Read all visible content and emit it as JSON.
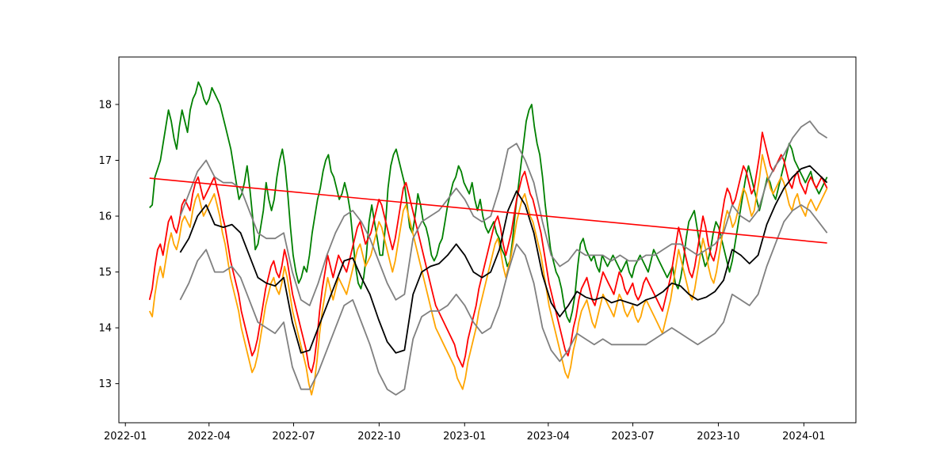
{
  "chart_data": {
    "type": "line",
    "title": "",
    "xlabel": "",
    "ylabel": "",
    "x_range": [
      "2022-01-27",
      "2024-01-26"
    ],
    "xlim": [
      "2021-12-25",
      "2024-02-26"
    ],
    "ylim": [
      12.3,
      18.85
    ],
    "grid": false,
    "legend": "none",
    "x_ticks": [
      "2022-01",
      "2022-04",
      "2022-07",
      "2022-10",
      "2023-01",
      "2023-04",
      "2023-07",
      "2023-10",
      "2024-01"
    ],
    "y_ticks": [
      13,
      14,
      15,
      16,
      17,
      18
    ],
    "series": [
      {
        "color": "#008000",
        "style": "daily",
        "values": [
          16.15,
          16.2,
          16.7,
          16.85,
          17.0,
          17.3,
          17.6,
          17.9,
          17.7,
          17.4,
          17.2,
          17.6,
          17.9,
          17.7,
          17.5,
          17.9,
          18.1,
          18.2,
          18.4,
          18.3,
          18.1,
          18.0,
          18.1,
          18.3,
          18.2,
          18.1,
          18.0,
          17.8,
          17.6,
          17.4,
          17.2,
          16.9,
          16.6,
          16.3,
          16.4,
          16.6,
          16.9,
          16.5,
          16.0,
          15.4,
          15.5,
          15.8,
          16.1,
          16.6,
          16.3,
          16.1,
          16.3,
          16.7,
          17.0,
          17.2,
          16.9,
          16.4,
          15.8,
          15.3,
          15.0,
          14.8,
          14.9,
          15.1,
          15.0,
          15.3,
          15.7,
          16.0,
          16.3,
          16.5,
          16.8,
          17.0,
          17.1,
          16.8,
          16.7,
          16.5,
          16.3,
          16.4,
          16.6,
          16.4,
          16.1,
          15.6,
          15.1,
          14.8,
          14.7,
          14.9,
          15.3,
          15.9,
          16.2,
          15.9,
          15.6,
          15.3,
          15.3,
          15.8,
          16.5,
          16.9,
          17.1,
          17.2,
          17.0,
          16.8,
          16.6,
          16.2,
          15.8,
          15.7,
          16.0,
          16.4,
          16.2,
          15.9,
          15.8,
          15.6,
          15.3,
          15.2,
          15.3,
          15.5,
          15.6,
          15.9,
          16.2,
          16.4,
          16.6,
          16.7,
          16.9,
          16.8,
          16.6,
          16.5,
          16.4,
          16.6,
          16.3,
          16.1,
          16.3,
          16.0,
          15.8,
          15.7,
          15.8,
          15.9,
          15.7,
          15.6,
          15.4,
          15.3,
          15.1,
          15.2,
          15.6,
          16.1,
          16.5,
          16.9,
          17.3,
          17.7,
          17.9,
          18.0,
          17.6,
          17.3,
          17.1,
          16.7,
          16.2,
          15.8,
          15.4,
          15.2,
          15.0,
          14.9,
          14.7,
          14.4,
          14.2,
          14.1,
          14.3,
          14.6,
          15.1,
          15.5,
          15.6,
          15.4,
          15.3,
          15.2,
          15.3,
          15.1,
          15.0,
          15.3,
          15.2,
          15.1,
          15.2,
          15.3,
          15.2,
          15.1,
          15.0,
          15.1,
          15.2,
          15.0,
          14.9,
          15.1,
          15.2,
          15.3,
          15.2,
          15.1,
          15.0,
          15.2,
          15.4,
          15.3,
          15.2,
          15.1,
          15.0,
          14.9,
          15.0,
          15.1,
          14.8,
          14.7,
          14.9,
          15.2,
          15.6,
          15.9,
          16.0,
          16.1,
          15.8,
          15.5,
          15.3,
          15.1,
          15.2,
          15.4,
          15.7,
          15.9,
          15.8,
          15.6,
          15.4,
          15.2,
          15.0,
          15.2,
          15.5,
          15.8,
          16.1,
          16.4,
          16.7,
          16.9,
          16.7,
          16.5,
          16.3,
          16.1,
          16.3,
          16.5,
          16.7,
          16.6,
          16.4,
          16.3,
          16.5,
          16.7,
          16.9,
          17.1,
          17.3,
          17.2,
          17.0,
          16.9,
          16.8,
          16.7,
          16.6,
          16.7,
          16.8,
          16.6,
          16.5,
          16.4,
          16.5,
          16.6,
          16.7
        ]
      },
      {
        "color": "#ff0000",
        "style": "daily",
        "values": [
          14.5,
          14.7,
          15.1,
          15.4,
          15.5,
          15.3,
          15.6,
          15.9,
          16.0,
          15.8,
          15.7,
          15.9,
          16.2,
          16.3,
          16.2,
          16.1,
          16.4,
          16.6,
          16.7,
          16.5,
          16.3,
          16.4,
          16.5,
          16.6,
          16.7,
          16.5,
          16.3,
          16.0,
          15.8,
          15.5,
          15.2,
          15.0,
          14.8,
          14.6,
          14.3,
          14.1,
          13.9,
          13.7,
          13.5,
          13.6,
          13.8,
          14.1,
          14.4,
          14.7,
          14.9,
          15.1,
          15.2,
          15.0,
          14.9,
          15.1,
          15.4,
          15.2,
          14.9,
          14.6,
          14.4,
          14.2,
          14.0,
          13.8,
          13.6,
          13.3,
          13.2,
          13.4,
          13.8,
          14.3,
          14.7,
          15.0,
          15.3,
          15.1,
          14.9,
          15.1,
          15.3,
          15.2,
          15.1,
          15.0,
          15.2,
          15.4,
          15.6,
          15.8,
          15.9,
          15.7,
          15.5,
          15.6,
          15.7,
          15.9,
          16.1,
          16.3,
          16.2,
          16.0,
          15.8,
          15.6,
          15.4,
          15.6,
          15.9,
          16.2,
          16.5,
          16.6,
          16.4,
          16.2,
          16.0,
          15.8,
          15.6,
          15.4,
          15.2,
          15.0,
          14.8,
          14.6,
          14.4,
          14.3,
          14.2,
          14.1,
          14.0,
          13.9,
          13.8,
          13.7,
          13.5,
          13.4,
          13.3,
          13.5,
          13.8,
          14.0,
          14.2,
          14.4,
          14.7,
          14.9,
          15.1,
          15.3,
          15.5,
          15.7,
          15.9,
          16.0,
          15.8,
          15.5,
          15.3,
          15.5,
          15.7,
          16.0,
          16.3,
          16.5,
          16.7,
          16.8,
          16.6,
          16.4,
          16.3,
          16.1,
          15.9,
          15.7,
          15.4,
          15.1,
          14.8,
          14.6,
          14.4,
          14.2,
          14.0,
          13.8,
          13.6,
          13.5,
          13.7,
          14.0,
          14.2,
          14.5,
          14.7,
          14.8,
          14.9,
          14.7,
          14.5,
          14.4,
          14.6,
          14.8,
          15.0,
          14.9,
          14.8,
          14.7,
          14.6,
          14.8,
          15.0,
          14.9,
          14.7,
          14.6,
          14.7,
          14.8,
          14.6,
          14.5,
          14.6,
          14.8,
          14.9,
          14.8,
          14.7,
          14.6,
          14.5,
          14.4,
          14.3,
          14.5,
          14.7,
          14.9,
          15.2,
          15.5,
          15.8,
          15.6,
          15.4,
          15.2,
          15.0,
          14.9,
          15.1,
          15.4,
          15.7,
          16.0,
          15.8,
          15.5,
          15.3,
          15.2,
          15.4,
          15.7,
          16.0,
          16.3,
          16.5,
          16.4,
          16.2,
          16.3,
          16.5,
          16.7,
          16.9,
          16.8,
          16.6,
          16.4,
          16.5,
          16.8,
          17.1,
          17.5,
          17.3,
          17.1,
          16.9,
          16.8,
          16.9,
          17.0,
          17.1,
          17.0,
          16.8,
          16.6,
          16.5,
          16.7,
          16.8,
          16.6,
          16.5,
          16.4,
          16.6,
          16.7,
          16.6,
          16.5,
          16.6,
          16.7,
          16.6,
          16.5
        ]
      },
      {
        "color": "#ffa500",
        "style": "daily",
        "values": [
          14.3,
          14.2,
          14.6,
          14.9,
          15.1,
          14.9,
          15.2,
          15.5,
          15.7,
          15.5,
          15.4,
          15.6,
          15.9,
          16.0,
          15.9,
          15.8,
          16.1,
          16.3,
          16.4,
          16.2,
          16.0,
          16.1,
          16.2,
          16.3,
          16.4,
          16.2,
          16.0,
          15.7,
          15.5,
          15.2,
          14.9,
          14.7,
          14.5,
          14.3,
          14.0,
          13.8,
          13.6,
          13.4,
          13.2,
          13.3,
          13.5,
          13.8,
          14.1,
          14.4,
          14.6,
          14.8,
          14.9,
          14.7,
          14.6,
          14.8,
          15.1,
          14.9,
          14.6,
          14.3,
          14.1,
          13.9,
          13.7,
          13.5,
          13.3,
          13.0,
          12.8,
          13.0,
          13.4,
          13.9,
          14.3,
          14.6,
          14.9,
          14.7,
          14.5,
          14.7,
          14.9,
          14.8,
          14.7,
          14.6,
          14.8,
          15.0,
          15.2,
          15.4,
          15.5,
          15.3,
          15.1,
          15.2,
          15.3,
          15.5,
          15.7,
          15.9,
          15.8,
          15.6,
          15.4,
          15.2,
          15.0,
          15.2,
          15.5,
          15.8,
          16.1,
          16.2,
          16.0,
          15.8,
          15.6,
          15.4,
          15.2,
          15.0,
          14.8,
          14.6,
          14.4,
          14.2,
          14.0,
          13.9,
          13.8,
          13.7,
          13.6,
          13.5,
          13.4,
          13.3,
          13.1,
          13.0,
          12.9,
          13.1,
          13.4,
          13.6,
          13.8,
          14.0,
          14.3,
          14.5,
          14.7,
          14.9,
          15.1,
          15.3,
          15.5,
          15.6,
          15.4,
          15.1,
          14.9,
          15.1,
          15.3,
          15.6,
          15.9,
          16.1,
          16.3,
          16.4,
          16.2,
          16.0,
          15.9,
          15.7,
          15.5,
          15.3,
          15.0,
          14.7,
          14.4,
          14.2,
          14.0,
          13.8,
          13.6,
          13.4,
          13.2,
          13.1,
          13.3,
          13.6,
          13.8,
          14.1,
          14.3,
          14.4,
          14.5,
          14.3,
          14.1,
          14.0,
          14.2,
          14.4,
          14.6,
          14.5,
          14.4,
          14.3,
          14.2,
          14.4,
          14.6,
          14.5,
          14.3,
          14.2,
          14.3,
          14.4,
          14.2,
          14.1,
          14.2,
          14.4,
          14.5,
          14.4,
          14.3,
          14.2,
          14.1,
          14.0,
          13.9,
          14.1,
          14.3,
          14.5,
          14.8,
          15.1,
          15.4,
          15.2,
          15.0,
          14.8,
          14.6,
          14.5,
          14.7,
          15.0,
          15.3,
          15.6,
          15.4,
          15.1,
          14.9,
          14.8,
          15.0,
          15.3,
          15.6,
          15.9,
          16.1,
          16.0,
          15.8,
          15.9,
          16.1,
          16.3,
          16.5,
          16.4,
          16.2,
          16.0,
          16.1,
          16.4,
          16.7,
          17.1,
          16.9,
          16.7,
          16.5,
          16.4,
          16.5,
          16.6,
          16.7,
          16.6,
          16.4,
          16.2,
          16.1,
          16.3,
          16.4,
          16.2,
          16.1,
          16.0,
          16.2,
          16.3,
          16.2,
          16.1,
          16.2,
          16.3,
          16.4,
          16.5
        ]
      },
      {
        "color": "#000000",
        "style": "smooth",
        "start": "2022-03-01",
        "end": "2024-01-26",
        "values": [
          15.35,
          15.6,
          16.0,
          16.2,
          15.85,
          15.8,
          15.85,
          15.7,
          15.3,
          14.9,
          14.8,
          14.75,
          14.9,
          14.1,
          13.55,
          13.6,
          14.0,
          14.4,
          14.8,
          15.2,
          15.25,
          14.9,
          14.6,
          14.15,
          13.75,
          13.55,
          13.6,
          14.6,
          15.0,
          15.1,
          15.15,
          15.3,
          15.5,
          15.3,
          15.0,
          14.9,
          15.0,
          15.4,
          16.1,
          16.45,
          16.2,
          15.7,
          14.95,
          14.45,
          14.2,
          14.4,
          14.65,
          14.55,
          14.5,
          14.55,
          14.45,
          14.5,
          14.45,
          14.4,
          14.5,
          14.55,
          14.65,
          14.8,
          14.75,
          14.6,
          14.5,
          14.55,
          14.65,
          14.85,
          15.4,
          15.3,
          15.15,
          15.3,
          15.85,
          16.2,
          16.5,
          16.7,
          16.85,
          16.9,
          16.75,
          16.6
        ]
      },
      {
        "color": "#808080",
        "style": "smooth",
        "start": "2022-03-01",
        "end": "2024-01-26",
        "values": [
          16.0,
          16.4,
          16.8,
          17.0,
          16.7,
          16.6,
          16.6,
          16.5,
          16.1,
          15.7,
          15.6,
          15.6,
          15.7,
          15.0,
          14.5,
          14.4,
          14.8,
          15.3,
          15.7,
          16.0,
          16.1,
          15.9,
          15.6,
          15.2,
          14.8,
          14.5,
          14.6,
          15.6,
          15.9,
          16.0,
          16.1,
          16.3,
          16.5,
          16.3,
          16.0,
          15.9,
          16.0,
          16.5,
          17.2,
          17.3,
          17.0,
          16.6,
          15.9,
          15.3,
          15.1,
          15.2,
          15.4,
          15.3,
          15.3,
          15.3,
          15.2,
          15.3,
          15.2,
          15.2,
          15.3,
          15.3,
          15.4,
          15.5,
          15.5,
          15.4,
          15.3,
          15.4,
          15.5,
          15.7,
          16.2,
          16.0,
          15.9,
          16.1,
          16.6,
          16.9,
          17.1,
          17.4,
          17.6,
          17.7,
          17.5,
          17.4
        ]
      },
      {
        "color": "#808080",
        "style": "smooth",
        "start": "2022-03-01",
        "end": "2024-01-26",
        "values": [
          14.5,
          14.8,
          15.2,
          15.4,
          15.0,
          15.0,
          15.1,
          14.9,
          14.5,
          14.1,
          14.0,
          13.9,
          14.1,
          13.3,
          12.9,
          12.9,
          13.2,
          13.6,
          14.0,
          14.4,
          14.5,
          14.1,
          13.7,
          13.2,
          12.9,
          12.8,
          12.9,
          13.8,
          14.2,
          14.3,
          14.3,
          14.4,
          14.6,
          14.4,
          14.1,
          13.9,
          14.0,
          14.4,
          15.0,
          15.5,
          15.3,
          14.8,
          14.0,
          13.6,
          13.4,
          13.6,
          13.9,
          13.8,
          13.7,
          13.8,
          13.7,
          13.7,
          13.7,
          13.7,
          13.7,
          13.8,
          13.9,
          14.0,
          13.9,
          13.8,
          13.7,
          13.8,
          13.9,
          14.1,
          14.6,
          14.5,
          14.4,
          14.6,
          15.1,
          15.5,
          15.9,
          16.1,
          16.2,
          16.1,
          15.9,
          15.7
        ]
      },
      {
        "color": "#ff0000",
        "style": "trend",
        "x": [
          "2022-01-27",
          "2024-01-26"
        ],
        "values": [
          16.68,
          15.52
        ]
      }
    ]
  }
}
